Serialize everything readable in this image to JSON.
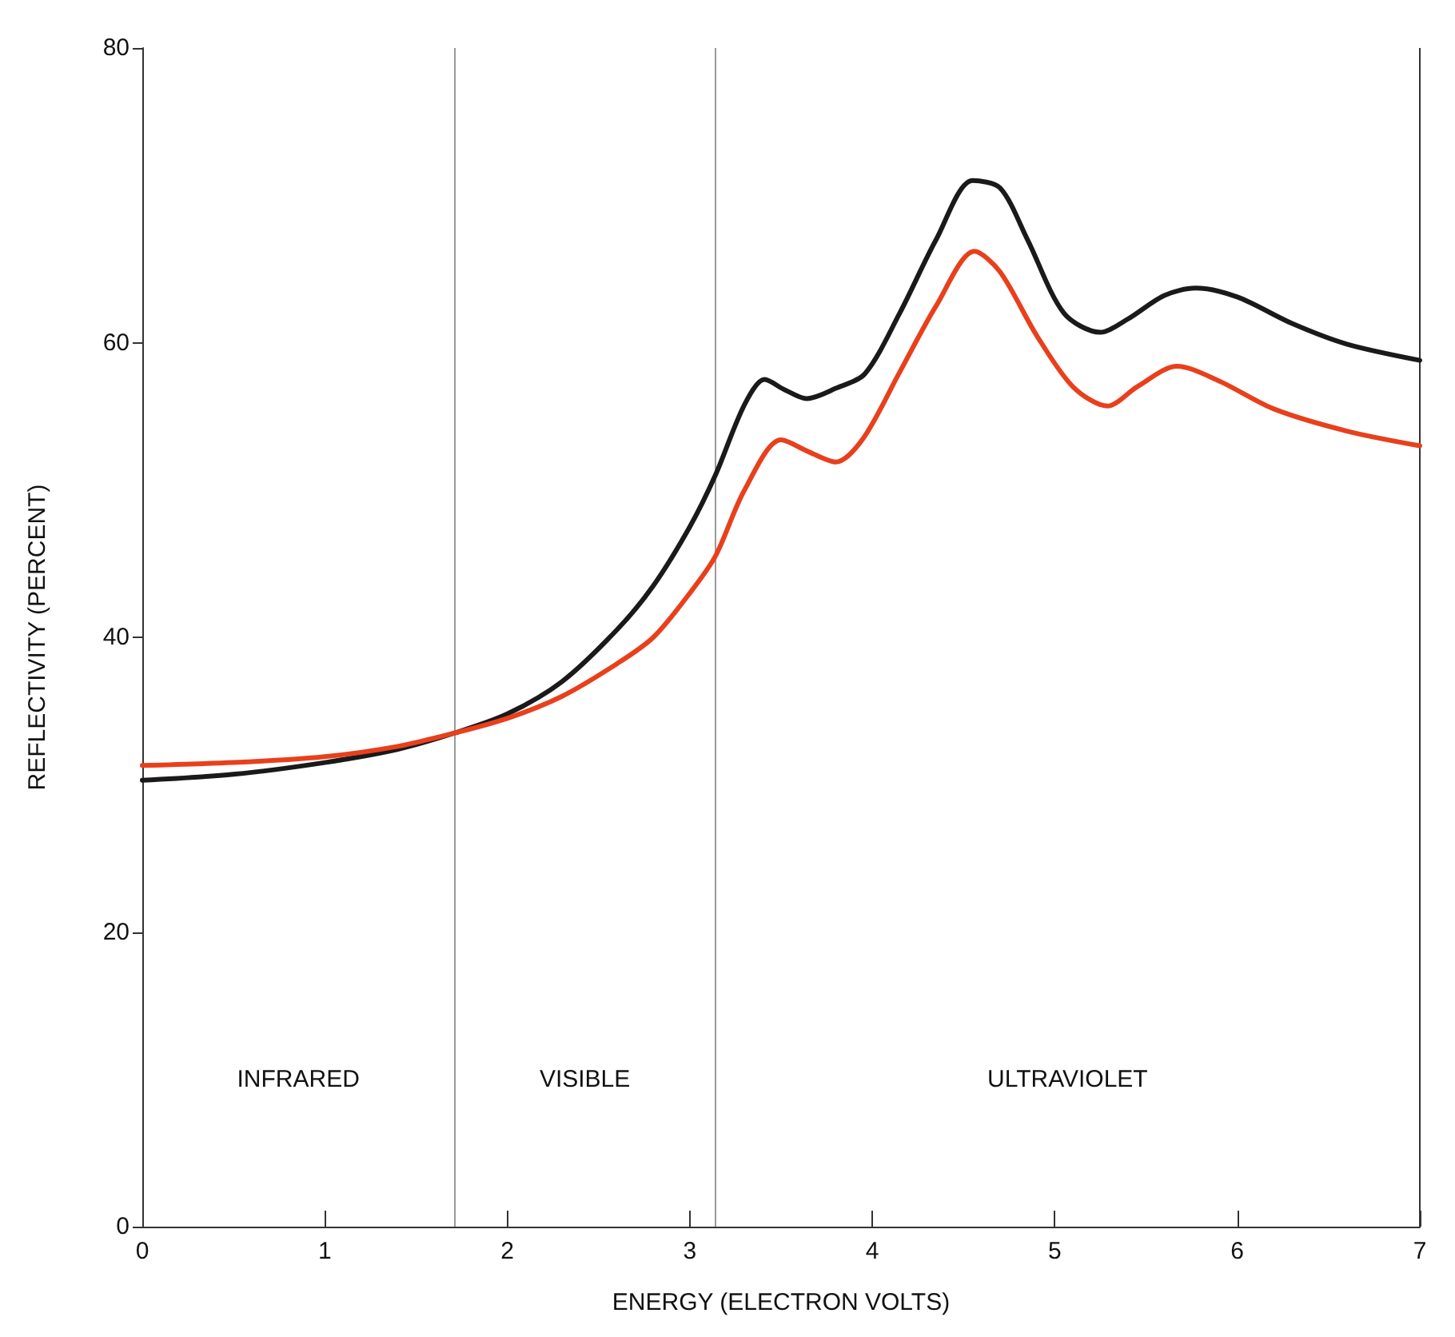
{
  "chart_data": {
    "type": "line",
    "xlabel": "ENERGY (ELECTRON VOLTS)",
    "ylabel": "REFLECTIVITY (PERCENT)",
    "xlim": [
      0,
      7
    ],
    "ylim": [
      0,
      80
    ],
    "xticks": [
      0,
      1,
      2,
      3,
      4,
      5,
      6,
      7
    ],
    "yticks": [
      0,
      20,
      40,
      60,
      80
    ],
    "grid": false,
    "marker": "none",
    "line_style": "solid",
    "series": [
      {
        "color": "#1a1a1a",
        "x": [
          0,
          0.5,
          1,
          1.4,
          1.71,
          2,
          2.3,
          2.6,
          2.8,
          3,
          3.14,
          3.3,
          3.41,
          3.52,
          3.64,
          3.8,
          3.96,
          4.15,
          4.35,
          4.55,
          4.7,
          4.85,
          5.05,
          5.25,
          5.4,
          5.6,
          5.77,
          6,
          6.3,
          6.6,
          7
        ],
        "values": [
          30.3,
          30.7,
          31.5,
          32.4,
          33.5,
          34.8,
          37,
          40.5,
          43.5,
          47.5,
          51,
          55.8,
          57.5,
          56.8,
          56.2,
          56.9,
          57.9,
          62,
          67,
          71,
          70.5,
          67,
          62,
          60.7,
          61.6,
          63.2,
          63.7,
          63.1,
          61.3,
          59.9,
          58.8
        ]
      },
      {
        "color": "#e8401c",
        "x": [
          0,
          0.5,
          1,
          1.4,
          1.71,
          2,
          2.3,
          2.6,
          2.8,
          3,
          3.14,
          3.3,
          3.5,
          3.65,
          3.8,
          3.95,
          4.15,
          4.35,
          4.56,
          4.7,
          4.9,
          5.1,
          5.29,
          5.45,
          5.67,
          5.9,
          6.2,
          6.6,
          7
        ],
        "values": [
          31.3,
          31.5,
          31.9,
          32.6,
          33.5,
          34.5,
          36,
          38.2,
          40,
          43,
          45.5,
          50,
          53.4,
          52.6,
          51.9,
          53.5,
          58,
          62.5,
          66.2,
          64.8,
          60.5,
          57,
          55.7,
          57,
          58.4,
          57.4,
          55.5,
          54,
          53
        ]
      }
    ],
    "ref_lines": [
      {
        "axis": "x",
        "value": 1.71,
        "color": "#9a9a9a"
      },
      {
        "axis": "x",
        "value": 3.14,
        "color": "#9a9a9a"
      }
    ],
    "annotations": [
      "INFRARED",
      "VISIBLE",
      "ULTRAVIOLET"
    ]
  }
}
